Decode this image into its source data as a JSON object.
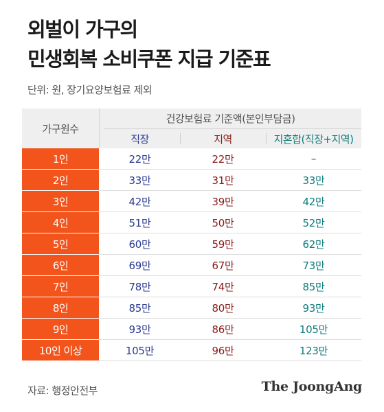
{
  "title": {
    "line1": "외벌이 가구의",
    "line2": "민생회복 소비쿠폰 지급 기준표"
  },
  "unit_note": "단위: 원, 장기요양보험료 제외",
  "table": {
    "header_household": "가구원수",
    "header_group": "건강보험료 기준액(본인부담금)",
    "sub_headers": [
      "직장",
      "지역",
      "지혼합(직장+지역)"
    ],
    "rows": [
      {
        "household": "1인",
        "workplace": "22만",
        "regional": "22만",
        "mixed": "–"
      },
      {
        "household": "2인",
        "workplace": "33만",
        "regional": "31만",
        "mixed": "33만"
      },
      {
        "household": "3인",
        "workplace": "42만",
        "regional": "39만",
        "mixed": "42만"
      },
      {
        "household": "4인",
        "workplace": "51만",
        "regional": "50만",
        "mixed": "52만"
      },
      {
        "household": "5인",
        "workplace": "60만",
        "regional": "59만",
        "mixed": "62만"
      },
      {
        "household": "6인",
        "workplace": "69만",
        "regional": "67만",
        "mixed": "73만"
      },
      {
        "household": "7인",
        "workplace": "78만",
        "regional": "74만",
        "mixed": "85만"
      },
      {
        "household": "8인",
        "workplace": "85만",
        "regional": "80만",
        "mixed": "93만"
      },
      {
        "household": "9인",
        "workplace": "93만",
        "regional": "86만",
        "mixed": "105만"
      },
      {
        "household": "10인 이상",
        "workplace": "105만",
        "regional": "96만",
        "mixed": "123만"
      }
    ]
  },
  "source": "자료: 행정안전부",
  "brand": "The JoongAng",
  "colors": {
    "accent": "#f2541c",
    "workplace": "#2b3990",
    "regional": "#8b1a1a",
    "mixed": "#0e7b7b",
    "header_bg": "#efefef"
  }
}
